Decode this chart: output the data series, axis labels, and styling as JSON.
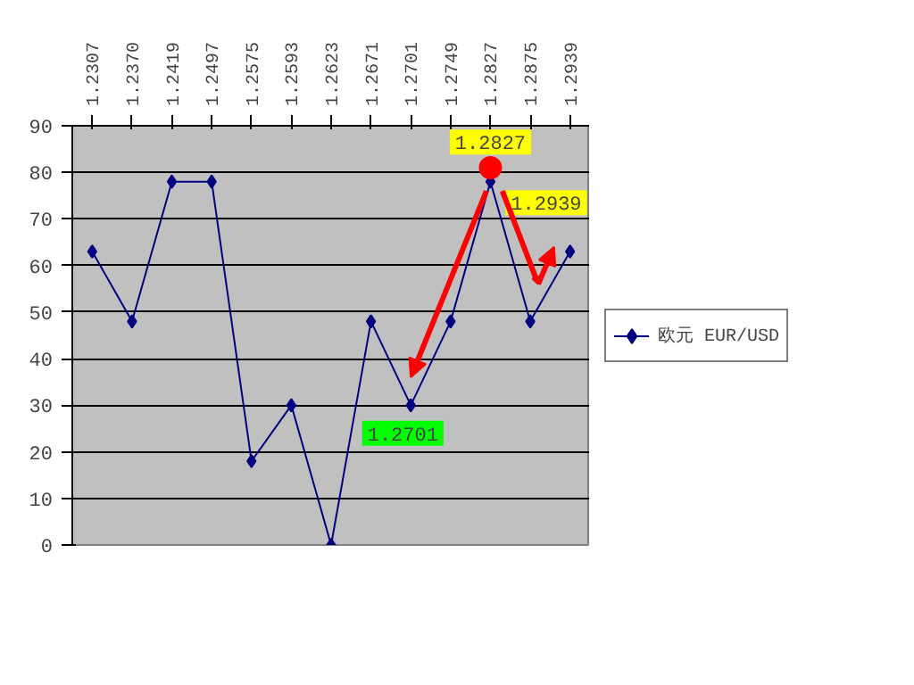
{
  "chart_data": {
    "type": "line",
    "categories": [
      "1.2307",
      "1.2370",
      "1.2419",
      "1.2497",
      "1.2575",
      "1.2593",
      "1.2623",
      "1.2671",
      "1.2701",
      "1.2749",
      "1.2827",
      "1.2875",
      "1.2939"
    ],
    "series": [
      {
        "name": "欧元 EUR/USD",
        "color": "#000080",
        "values": [
          63,
          48,
          78,
          78,
          18,
          30,
          0,
          48,
          30,
          48,
          78,
          48,
          63
        ]
      },
      {
        "type": "scatter",
        "marker": "circle",
        "color": "#ff0000",
        "x": [
          "1.2827"
        ],
        "values": [
          81
        ]
      }
    ],
    "annotations": [
      {
        "text": "1.2827",
        "x": "1.2827",
        "y": 78
      },
      {
        "text": "1.2939",
        "x": "1.2939",
        "y": 63
      },
      {
        "text": "1.2701",
        "x": "1.2701",
        "y": 30
      }
    ],
    "ylim": [
      0,
      90
    ],
    "yticks": [
      0,
      10,
      20,
      30,
      40,
      50,
      60,
      70,
      80,
      90
    ],
    "grid": "y",
    "legend": "right",
    "marker": "diamond",
    "line_style": "solid"
  }
}
